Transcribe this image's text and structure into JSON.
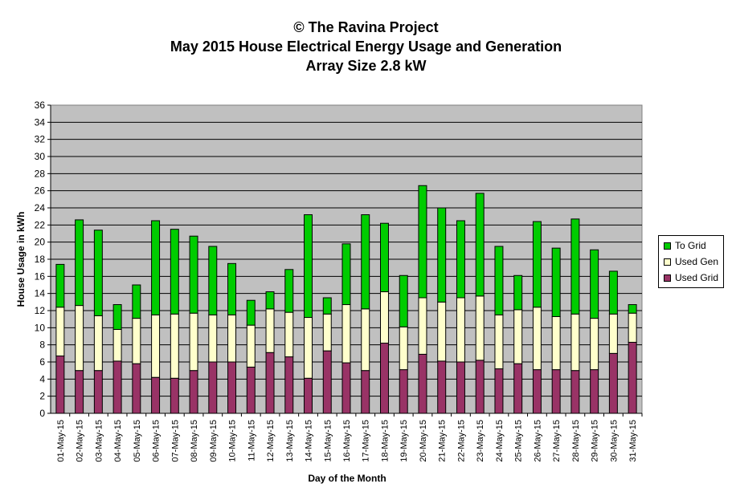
{
  "chart_data": {
    "type": "bar",
    "stacked": true,
    "title_lines": [
      "© The Ravina Project",
      "May 2015 House Electrical Energy Usage and Generation",
      "Array Size 2.8 kW"
    ],
    "xlabel": "Day of the Month",
    "ylabel": "House Usage in kWh",
    "ylim": [
      0,
      36
    ],
    "y_ticks": [
      0,
      2,
      4,
      6,
      8,
      10,
      12,
      14,
      16,
      18,
      20,
      22,
      24,
      26,
      28,
      30,
      32,
      34,
      36
    ],
    "grid": true,
    "legend_position": "right",
    "categories": [
      "01-May-15",
      "02-May-15",
      "03-May-15",
      "04-May-15",
      "05-May-15",
      "06-May-15",
      "07-May-15",
      "08-May-15",
      "09-May-15",
      "10-May-15",
      "11-May-15",
      "12-May-15",
      "13-May-15",
      "14-May-15",
      "15-May-15",
      "16-May-15",
      "17-May-15",
      "18-May-15",
      "19-May-15",
      "20-May-15",
      "21-May-15",
      "22-May-15",
      "23-May-15",
      "24-May-15",
      "25-May-15",
      "26-May-15",
      "27-May-15",
      "28-May-15",
      "29-May-15",
      "30-May-15",
      "31-May-15"
    ],
    "series": [
      {
        "name": "Used Grid",
        "color": "#993366",
        "values": [
          6.7,
          5.0,
          5.0,
          6.1,
          5.8,
          4.2,
          4.1,
          5.0,
          6.0,
          6.0,
          5.4,
          7.1,
          6.6,
          4.1,
          7.3,
          5.9,
          5.0,
          8.2,
          5.1,
          6.9,
          6.1,
          6.0,
          6.2,
          5.2,
          5.8,
          5.1,
          5.1,
          5.0,
          5.1,
          7.0,
          8.3
        ]
      },
      {
        "name": "Used Gen",
        "color": "#FFFFCC",
        "values": [
          5.7,
          7.6,
          6.4,
          3.7,
          5.3,
          7.3,
          7.5,
          6.7,
          5.5,
          5.5,
          4.9,
          5.1,
          5.2,
          7.1,
          4.3,
          6.8,
          7.2,
          6.0,
          5.0,
          6.6,
          6.9,
          7.5,
          7.5,
          6.3,
          6.3,
          7.3,
          6.2,
          6.6,
          6.0,
          4.6,
          3.4
        ]
      },
      {
        "name": "To Grid",
        "color": "#00CC00",
        "values": [
          5.0,
          10.0,
          10.0,
          2.9,
          3.9,
          11.0,
          9.9,
          9.0,
          8.0,
          6.0,
          2.9,
          2.0,
          5.0,
          12.0,
          1.9,
          7.1,
          11.0,
          8.0,
          6.0,
          13.1,
          11.0,
          9.0,
          12.0,
          8.0,
          4.0,
          10.0,
          8.0,
          11.1,
          8.0,
          5.0,
          1.0
        ]
      }
    ]
  },
  "legend": [
    {
      "label": "To Grid",
      "color": "#00CC00"
    },
    {
      "label": "Used Gen",
      "color": "#FFFFCC"
    },
    {
      "label": "Used Grid",
      "color": "#993366"
    }
  ]
}
